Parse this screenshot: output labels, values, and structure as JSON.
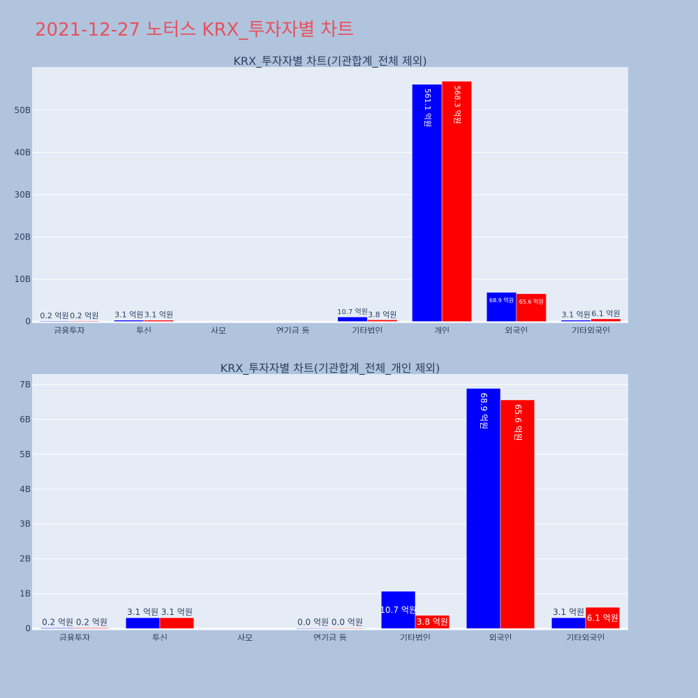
{
  "page": {
    "title": "2021-12-27 노터스 KRX_투자자별 차트"
  },
  "colors": {
    "background": "#b0c4de",
    "plot_bg": "#e5ecf6",
    "title": "#e8505b",
    "series1": "#0000ff",
    "series2": "#ff0000"
  },
  "chart_data": [
    {
      "type": "bar",
      "title": "KRX_투자자별 차트(기관합계_전체 제외)",
      "categories": [
        "금융투자",
        "투신",
        "사모",
        "연기금 등",
        "기타법인",
        "개인",
        "외국인",
        "기타외국인"
      ],
      "series": [
        {
          "values": [
            0.02,
            0.31,
            null,
            null,
            1.07,
            56.11,
            6.89,
            0.31
          ],
          "labels": [
            "0.2 억원",
            "3.1 억원",
            "",
            "",
            "10.7 억원",
            "561.1 억원",
            "68.9 억원",
            "3.1 억원"
          ]
        },
        {
          "values": [
            0.02,
            0.31,
            null,
            null,
            0.38,
            56.83,
            6.56,
            0.61
          ],
          "labels": [
            "0.2 억원",
            "3.1 억원",
            "",
            "",
            "3.8 억원",
            "568.3 억원",
            "65.6 억원",
            "6.1 억원"
          ]
        }
      ],
      "yticks": [
        0,
        10,
        20,
        30,
        40,
        50
      ],
      "ytick_labels": [
        "0",
        "10B",
        "20B",
        "30B",
        "40B",
        "50B"
      ],
      "ylim": [
        -0.4,
        60.2
      ],
      "grid": true,
      "unit": "B"
    },
    {
      "type": "bar",
      "title": "KRX_투자자별 차트(기관합계_전체_개인 제외)",
      "categories": [
        "금융투자",
        "투신",
        "사모",
        "연기금 등",
        "기타법인",
        "외국인",
        "기타외국인"
      ],
      "series": [
        {
          "values": [
            0.02,
            0.31,
            null,
            0.0,
            1.07,
            6.89,
            0.31
          ],
          "labels": [
            "0.2 억원",
            "3.1 억원",
            "",
            "0.0 억원",
            "10.7 억원",
            "68.9 억원",
            "3.1 억원"
          ]
        },
        {
          "values": [
            0.02,
            0.31,
            null,
            0.0,
            0.38,
            6.56,
            0.61
          ],
          "labels": [
            "0.2 억원",
            "3.1 억원",
            "",
            "0.0 억원",
            "3.8 억원",
            "65.6 억원",
            "6.1 억원"
          ]
        }
      ],
      "yticks": [
        0,
        1,
        2,
        3,
        4,
        5,
        6,
        7
      ],
      "ytick_labels": [
        "0",
        "1B",
        "2B",
        "3B",
        "4B",
        "5B",
        "6B",
        "7B"
      ],
      "ylim": [
        -0.05,
        7.3
      ],
      "grid": true,
      "unit": "B"
    }
  ]
}
